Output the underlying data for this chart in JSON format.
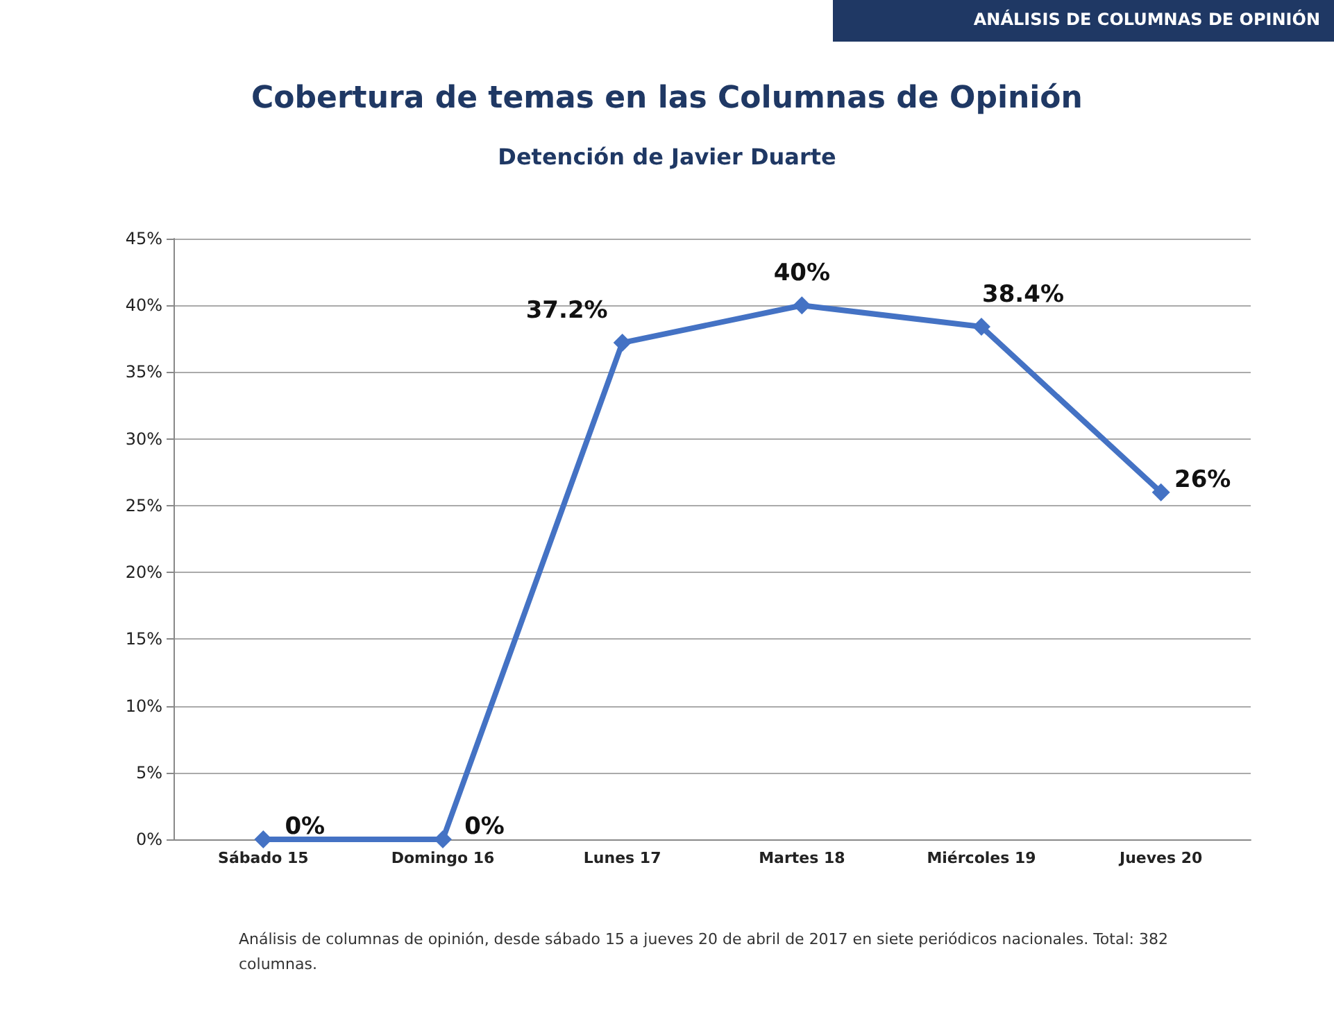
{
  "chart_data": {
    "type": "line",
    "title": "Cobertura de temas en las Columnas de Opinión",
    "subtitle": "Detención de Javier Duarte",
    "categories": [
      "Sábado 15",
      "Domingo 16",
      "Lunes 17",
      "Martes 18",
      "Miércoles 19",
      "Jueves 20"
    ],
    "series": [
      {
        "color": "#4472c4",
        "values": [
          0,
          0,
          37.2,
          40,
          38.4,
          26
        ],
        "value_labels": [
          "0%",
          "0%",
          "37.2%",
          "40%",
          "38.4%",
          "26%"
        ]
      }
    ],
    "ylim": [
      0,
      45
    ],
    "yticks": [
      {
        "value": 0,
        "label": "0%"
      },
      {
        "value": 5,
        "label": "5%"
      },
      {
        "value": 10,
        "label": "10%"
      },
      {
        "value": 15,
        "label": "15%"
      },
      {
        "value": 20,
        "label": "20%"
      },
      {
        "value": 25,
        "label": "25%"
      },
      {
        "value": 30,
        "label": "30%"
      },
      {
        "value": 35,
        "label": "35%"
      },
      {
        "value": 40,
        "label": "40%"
      },
      {
        "value": 45,
        "label": "45%"
      }
    ],
    "grid": "y",
    "marker": "diamond",
    "line_style": "solid",
    "annotations": [
      "ANÁLISIS DE COLUMNAS DE OPINIÓN",
      "Análisis de columnas de opinión, desde sábado 15 a jueves 20 de abril de 2017 en siete periódicos nacionales. Total: 382 columnas."
    ]
  }
}
